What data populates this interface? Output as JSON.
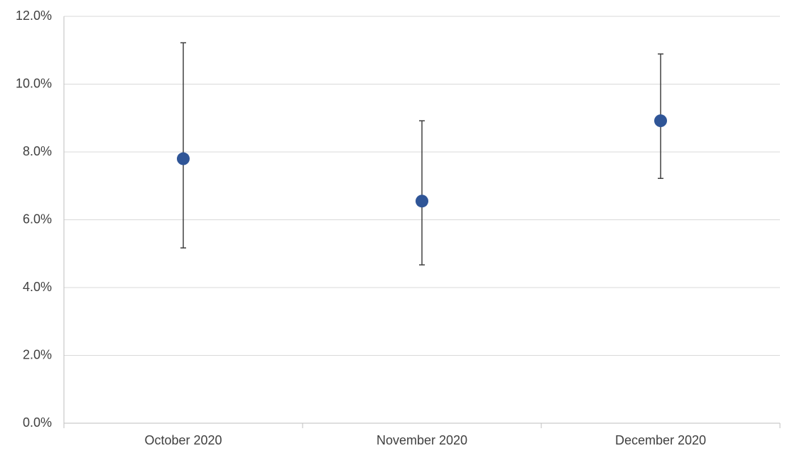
{
  "chart_data": {
    "type": "errorbar",
    "categories": [
      "October 2020",
      "November 2020",
      "December 2020"
    ],
    "values": [
      7.8,
      6.55,
      8.92
    ],
    "lower": [
      5.17,
      4.67,
      7.22
    ],
    "upper": [
      11.22,
      8.92,
      10.89
    ],
    "color": "#2f5597",
    "ylim": [
      0,
      12
    ],
    "yticks": [
      {
        "value": 0,
        "label": "0.0%"
      },
      {
        "value": 2,
        "label": "2.0%"
      },
      {
        "value": 4,
        "label": "4.0%"
      },
      {
        "value": 6,
        "label": "6.0%"
      },
      {
        "value": 8,
        "label": "8.0%"
      },
      {
        "value": 10,
        "label": "10.0%"
      },
      {
        "value": 12,
        "label": "12.0%"
      }
    ],
    "grid": true
  }
}
